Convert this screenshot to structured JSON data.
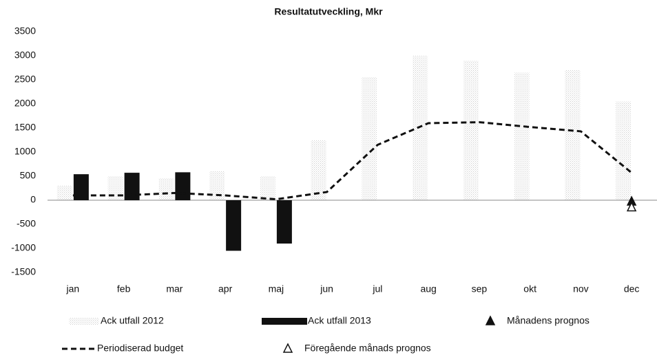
{
  "chart_data": {
    "type": "bar",
    "title": "Resultatutveckling, Mkr",
    "categories": [
      "jan",
      "feb",
      "mar",
      "apr",
      "maj",
      "jun",
      "jul",
      "aug",
      "sep",
      "okt",
      "nov",
      "dec"
    ],
    "series": [
      {
        "name": "Ack utfall 2012",
        "type": "bar",
        "color": "#cfcfcf",
        "values": [
          300,
          500,
          450,
          600,
          500,
          1250,
          2550,
          3000,
          2900,
          2650,
          2700,
          2050
        ]
      },
      {
        "name": "Ack utfall 2013",
        "type": "bar",
        "color": "#111111",
        "values": [
          540,
          570,
          580,
          -1050,
          -900,
          null,
          null,
          null,
          null,
          null,
          null,
          null
        ]
      },
      {
        "name": "Månadens prognos",
        "type": "marker",
        "marker": "filled",
        "color": "#111111",
        "values": [
          null,
          null,
          null,
          null,
          null,
          null,
          null,
          null,
          null,
          null,
          null,
          -30
        ]
      },
      {
        "name": "Periodiserad budget",
        "type": "line",
        "dash": true,
        "color": "#111111",
        "values": [
          100,
          100,
          150,
          100,
          20,
          170,
          1150,
          1600,
          1620,
          1520,
          1430,
          570
        ]
      },
      {
        "name": "Föregående månads prognos",
        "type": "marker",
        "marker": "open",
        "color": "#111111",
        "values": [
          null,
          null,
          null,
          null,
          null,
          null,
          null,
          null,
          null,
          null,
          null,
          -150
        ]
      }
    ],
    "ylim": [
      -1500,
      3500
    ],
    "yticks": [
      -1500,
      -1000,
      -500,
      0,
      500,
      1000,
      1500,
      2000,
      2500,
      3000,
      3500
    ],
    "grid": false
  }
}
